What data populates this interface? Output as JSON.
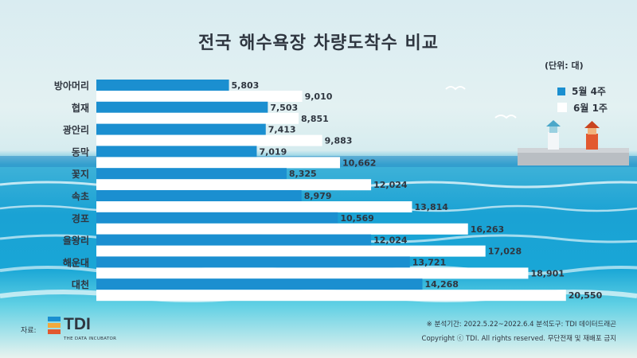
{
  "title": "전국 해수욕장 차량도착수 비교",
  "unit": "(단위: 대)",
  "colors": {
    "series1": "#1b8fd0",
    "series2": "#ffffff",
    "text": "#2f3640"
  },
  "chart_data": {
    "type": "bar",
    "orientation": "horizontal",
    "categories": [
      "방아머리",
      "협재",
      "광안리",
      "동막",
      "꽃지",
      "속초",
      "경포",
      "을왕리",
      "해운대",
      "대천"
    ],
    "series": [
      {
        "name": "5월 4주",
        "values": [
          5803,
          7503,
          7413,
          7019,
          8325,
          8979,
          10569,
          12024,
          13721,
          14268
        ],
        "labels": [
          "5,803",
          "7,503",
          "7,413",
          "7,019",
          "8,325",
          "8,979",
          "10,569",
          "12,024",
          "13,721",
          "14,268"
        ]
      },
      {
        "name": "6월 1주",
        "values": [
          9010,
          8851,
          9883,
          10662,
          12024,
          13814,
          16263,
          17028,
          18901,
          20550
        ],
        "labels": [
          "9,010",
          "8,851",
          "9,883",
          "10,662",
          "12,024",
          "13,814",
          "16,263",
          "17,028",
          "18,901",
          "20,550"
        ]
      }
    ],
    "legend_position": "right",
    "grid": false
  },
  "footer": {
    "source_label": "자료:",
    "logo_name": "TDI",
    "logo_tagline": "THE DATA INCUBATOR",
    "note": "※ 분석기간: 2022.5.22~2022.6.4  분석도구: TDI 데이터드래곤",
    "copyright": "Copyright ⓒ TDI. All rights reserved. 무단전재 및 재배포 금지"
  }
}
